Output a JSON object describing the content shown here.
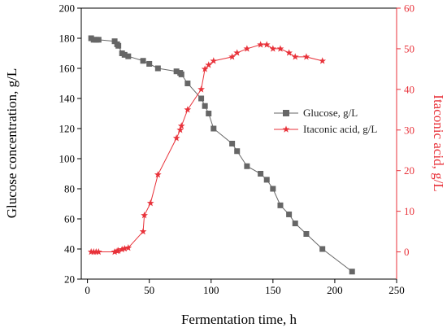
{
  "chart_data": {
    "type": "line",
    "title": "",
    "xlabel": "Fermentation time, h",
    "ylabel": "Glucose concentration, g/L",
    "y2label": "Itaconic acid, g/L",
    "xlim": [
      -5,
      250
    ],
    "ylim": [
      20,
      200
    ],
    "y2lim": [
      -6.7,
      60
    ],
    "xticks": [
      0,
      50,
      100,
      150,
      200,
      250
    ],
    "yticks": [
      20,
      40,
      60,
      80,
      100,
      120,
      140,
      160,
      180,
      200
    ],
    "y2ticks": [
      0,
      10,
      20,
      30,
      40,
      50,
      60
    ],
    "grid": false,
    "legend_position": "right-middle",
    "series": [
      {
        "name": "Glucose, g/L",
        "axis": "left",
        "marker": "square",
        "color": "#666666",
        "x": [
          3,
          5,
          7,
          9,
          22,
          24,
          25,
          28,
          30,
          33,
          45,
          50,
          57,
          72,
          75,
          76,
          81,
          92,
          95,
          98,
          102,
          117,
          121,
          129,
          140,
          145,
          150,
          156,
          163,
          168,
          177,
          190,
          214
        ],
        "y": [
          180,
          179,
          179,
          179,
          178,
          176,
          175,
          170,
          169,
          168,
          165,
          163,
          160,
          158,
          157,
          156,
          150,
          140,
          135,
          130,
          120,
          110,
          105,
          95,
          90,
          86,
          80,
          69,
          63,
          57,
          50,
          40,
          25
        ]
      },
      {
        "name": "Itaconic acid, g/L",
        "axis": "right",
        "marker": "star",
        "color": "#e8323a",
        "x": [
          3,
          5,
          7,
          9,
          22,
          24,
          25,
          28,
          30,
          33,
          45,
          46,
          51,
          57,
          72,
          75,
          76,
          81,
          92,
          95,
          98,
          102,
          117,
          121,
          129,
          140,
          145,
          150,
          156,
          163,
          168,
          177,
          190
        ],
        "y": [
          0,
          0,
          0,
          0,
          0,
          0.2,
          0.3,
          0.6,
          0.8,
          1,
          5,
          9,
          12,
          19,
          28,
          30,
          31,
          35,
          40,
          45,
          46,
          47,
          48,
          49,
          50,
          51,
          51,
          50,
          50,
          49,
          48,
          48,
          47
        ]
      }
    ]
  }
}
